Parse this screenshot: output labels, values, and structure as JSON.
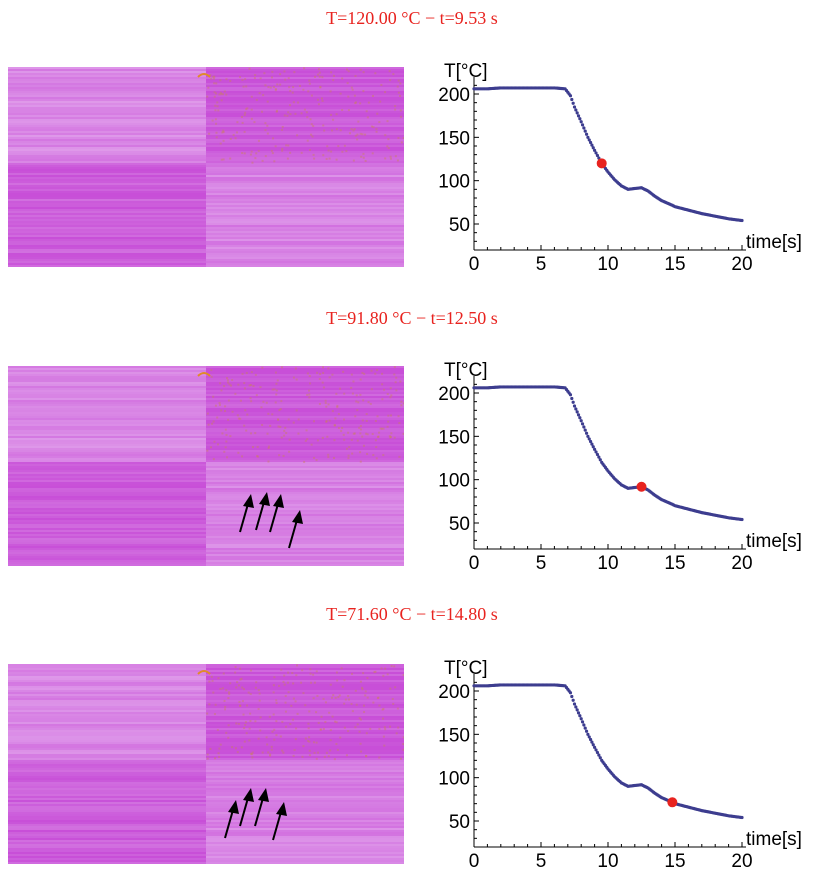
{
  "panels": [
    {
      "title": "T=120.00 °C − t=9.53 s",
      "arrows": false
    },
    {
      "title": "T=91.80 °C − t=12.50 s",
      "arrows": true
    },
    {
      "title": "T=71.60 °C − t=14.80 s",
      "arrows": true
    }
  ],
  "colors": {
    "curve": "#3d3d8f",
    "marker": "#e8231f",
    "title": "#e8231f",
    "image_base": "#c84fd8",
    "image_light": "#e7b6f0",
    "arrow": "#000000"
  },
  "chart_data": [
    {
      "type": "line",
      "xlabel": "time[s]",
      "ylabel": "T[°C]",
      "xlim": [
        0,
        20
      ],
      "ylim": [
        20,
        215
      ],
      "xticks": [
        0,
        5,
        10,
        15,
        20
      ],
      "yticks": [
        50,
        100,
        150,
        200
      ],
      "series": [
        {
          "x": [
            0,
            1,
            2,
            3,
            4,
            5,
            6,
            6.8,
            7.2,
            7.5,
            8,
            8.5,
            9,
            9.53,
            10,
            10.5,
            11,
            11.5,
            12,
            12.5,
            13,
            13.5,
            14,
            14.8,
            15,
            16,
            17,
            18,
            19,
            20
          ],
          "y": [
            206,
            206,
            207,
            207,
            207,
            207,
            207,
            206,
            198,
            185,
            168,
            150,
            135,
            120,
            110,
            101,
            94,
            90,
            91,
            91.8,
            88,
            82,
            77,
            71.6,
            70,
            66,
            62,
            59,
            56,
            54
          ]
        }
      ],
      "marker": {
        "x": 9.53,
        "y": 120
      }
    },
    {
      "type": "line",
      "xlabel": "time[s]",
      "ylabel": "T[°C]",
      "xlim": [
        0,
        20
      ],
      "ylim": [
        20,
        215
      ],
      "xticks": [
        0,
        5,
        10,
        15,
        20
      ],
      "yticks": [
        50,
        100,
        150,
        200
      ],
      "series": [
        {
          "x": [
            0,
            1,
            2,
            3,
            4,
            5,
            6,
            6.8,
            7.2,
            7.5,
            8,
            8.5,
            9,
            9.53,
            10,
            10.5,
            11,
            11.5,
            12,
            12.5,
            13,
            13.5,
            14,
            14.8,
            15,
            16,
            17,
            18,
            19,
            20
          ],
          "y": [
            206,
            206,
            207,
            207,
            207,
            207,
            207,
            206,
            198,
            185,
            168,
            150,
            135,
            120,
            110,
            101,
            94,
            90,
            91,
            91.8,
            88,
            82,
            77,
            71.6,
            70,
            66,
            62,
            59,
            56,
            54
          ]
        }
      ],
      "marker": {
        "x": 12.5,
        "y": 91.8
      }
    },
    {
      "type": "line",
      "xlabel": "time[s]",
      "ylabel": "T[°C]",
      "xlim": [
        0,
        20
      ],
      "ylim": [
        20,
        215
      ],
      "xticks": [
        0,
        5,
        10,
        15,
        20
      ],
      "yticks": [
        50,
        100,
        150,
        200
      ],
      "series": [
        {
          "x": [
            0,
            1,
            2,
            3,
            4,
            5,
            6,
            6.8,
            7.2,
            7.5,
            8,
            8.5,
            9,
            9.53,
            10,
            10.5,
            11,
            11.5,
            12,
            12.5,
            13,
            13.5,
            14,
            14.8,
            15,
            16,
            17,
            18,
            19,
            20
          ],
          "y": [
            206,
            206,
            207,
            207,
            207,
            207,
            207,
            206,
            198,
            185,
            168,
            150,
            135,
            120,
            110,
            101,
            94,
            90,
            91,
            91.8,
            88,
            82,
            77,
            71.6,
            70,
            66,
            62,
            59,
            56,
            54
          ]
        }
      ],
      "marker": {
        "x": 14.8,
        "y": 71.6
      }
    }
  ]
}
